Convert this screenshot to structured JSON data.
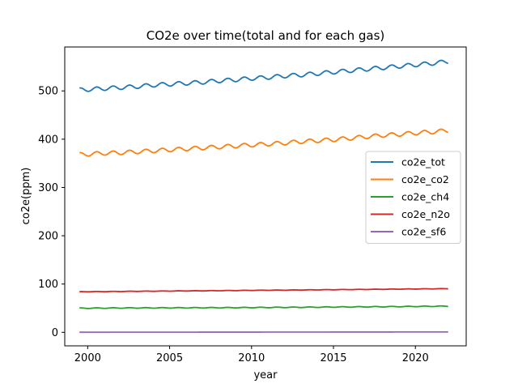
{
  "chart_data": {
    "type": "line",
    "title": "CO2e over time(total and for each gas)",
    "xlabel": "year",
    "ylabel": "co2e(ppm)",
    "xlim": [
      1998.6,
      2023.1
    ],
    "ylim": [
      -28,
      591
    ],
    "x_ticks": [
      2000,
      2005,
      2010,
      2015,
      2020
    ],
    "x_tick_labels": [
      "2000",
      "2005",
      "2010",
      "2015",
      "2020"
    ],
    "y_ticks": [
      0,
      100,
      200,
      300,
      400,
      500
    ],
    "y_tick_labels": [
      "0",
      "100",
      "200",
      "300",
      "400",
      "500"
    ],
    "grid": false,
    "legend_position": "center-right",
    "x": [
      1999.5,
      2000,
      2001,
      2002,
      2003,
      2004,
      2005,
      2006,
      2007,
      2008,
      2009,
      2010,
      2011,
      2012,
      2013,
      2014,
      2015,
      2016,
      2017,
      2018,
      2019,
      2020,
      2021,
      2022
    ],
    "series": [
      {
        "name": "co2e_tot",
        "color": "#1f77b4",
        "seasonal_amplitude": 4,
        "values": [
          502,
          503,
          505,
          507,
          509,
          512,
          514,
          516,
          518,
          521,
          523,
          526,
          528,
          531,
          533,
          536,
          539,
          542,
          545,
          548,
          551,
          554,
          557,
          561
        ]
      },
      {
        "name": "co2e_co2",
        "color": "#ff7f0e",
        "seasonal_amplitude": 4,
        "values": [
          368,
          369,
          371,
          372,
          374,
          376,
          378,
          380,
          382,
          384,
          386,
          388,
          390,
          392,
          395,
          397,
          399,
          402,
          405,
          408,
          410,
          413,
          415,
          418
        ]
      },
      {
        "name": "co2e_ch4",
        "color": "#2ca02c",
        "seasonal_amplitude": 0.6,
        "values": [
          50,
          50,
          50.2,
          50.4,
          50.5,
          50.6,
          50.7,
          50.8,
          50.9,
          51,
          51.1,
          51.3,
          51.5,
          51.7,
          51.9,
          52.1,
          52.4,
          52.6,
          52.8,
          53,
          53.3,
          53.6,
          53.9,
          54.2
        ]
      },
      {
        "name": "co2e_n2o",
        "color": "#d62728",
        "seasonal_amplitude": 0.3,
        "values": [
          84,
          84.2,
          84.4,
          84.7,
          85,
          85.2,
          85.5,
          85.8,
          86,
          86.3,
          86.6,
          86.9,
          87.2,
          87.4,
          87.7,
          88,
          88.3,
          88.6,
          88.9,
          89.2,
          89.5,
          89.8,
          90.1,
          90.4
        ]
      },
      {
        "name": "co2e_sf6",
        "color": "#9467bd",
        "seasonal_amplitude": 0,
        "values": [
          0.2,
          0.2,
          0.2,
          0.3,
          0.3,
          0.3,
          0.3,
          0.3,
          0.4,
          0.4,
          0.4,
          0.4,
          0.5,
          0.5,
          0.5,
          0.5,
          0.6,
          0.6,
          0.6,
          0.6,
          0.7,
          0.7,
          0.7,
          0.8
        ]
      }
    ]
  }
}
